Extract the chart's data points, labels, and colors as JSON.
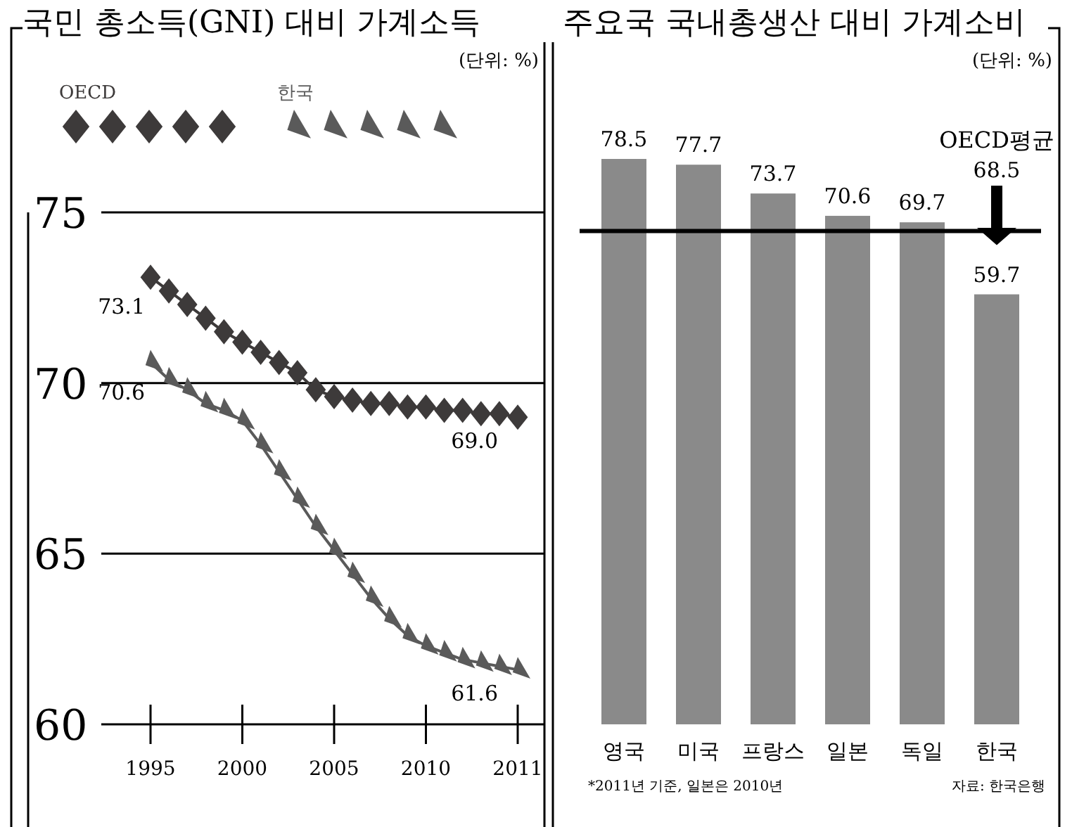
{
  "chart_data": [
    {
      "type": "line",
      "title": "국민 총소득(GNI) 대비 가계소득",
      "annotations": [
        "(단위: %)"
      ],
      "categories": [
        "1995",
        null,
        null,
        null,
        null,
        "2000",
        null,
        null,
        null,
        null,
        "2005",
        null,
        null,
        null,
        null,
        "2010",
        null,
        null,
        null,
        null,
        "2011"
      ],
      "series": [
        {
          "name": "OECD",
          "color": "#3d3a3a",
          "marker": "diamond",
          "values": [
            73.1,
            72.7,
            72.3,
            71.9,
            71.5,
            71.2,
            70.9,
            70.6,
            70.3,
            69.8,
            69.6,
            69.5,
            69.4,
            69.4,
            69.3,
            69.3,
            69.2,
            69.2,
            69.1,
            69.1,
            69.0
          ],
          "value_labels": [
            "73.1",
            null,
            null,
            null,
            null,
            null,
            null,
            null,
            null,
            null,
            null,
            null,
            null,
            null,
            null,
            null,
            null,
            null,
            null,
            null,
            "69.0"
          ]
        },
        {
          "name": "한국",
          "color": "#5a5a5a",
          "marker": "triangle",
          "values": [
            70.6,
            70.1,
            69.8,
            69.4,
            69.2,
            68.9,
            68.2,
            67.4,
            66.6,
            65.8,
            65.1,
            64.4,
            63.7,
            63.1,
            62.6,
            62.3,
            62.1,
            61.9,
            61.8,
            61.7,
            61.6
          ],
          "value_labels": [
            "70.6",
            null,
            null,
            null,
            null,
            null,
            null,
            null,
            null,
            null,
            null,
            null,
            null,
            null,
            null,
            null,
            null,
            null,
            null,
            null,
            "61.6"
          ]
        }
      ],
      "ylim": [
        60,
        75
      ],
      "yticks": [
        60,
        65,
        70,
        75
      ],
      "grid": "y",
      "legend": "top left"
    },
    {
      "type": "bar",
      "title": "주요국 국내총생산 대비 가계소비",
      "annotations": [
        "(단위: %)",
        "*2011년 기준, 일본은 2010년",
        "자료: 한국은행"
      ],
      "categories": [
        "영국",
        "미국",
        "프랑스",
        "일본",
        "독일",
        "한국"
      ],
      "values": [
        78.5,
        77.7,
        73.7,
        70.6,
        69.7,
        59.7
      ],
      "color": "#8a8a8a",
      "data_labels": true,
      "ref_lines": [
        {
          "axis": "y",
          "value": 68.5,
          "label": "OECD평균 68.5",
          "color": "#000000"
        }
      ]
    }
  ]
}
